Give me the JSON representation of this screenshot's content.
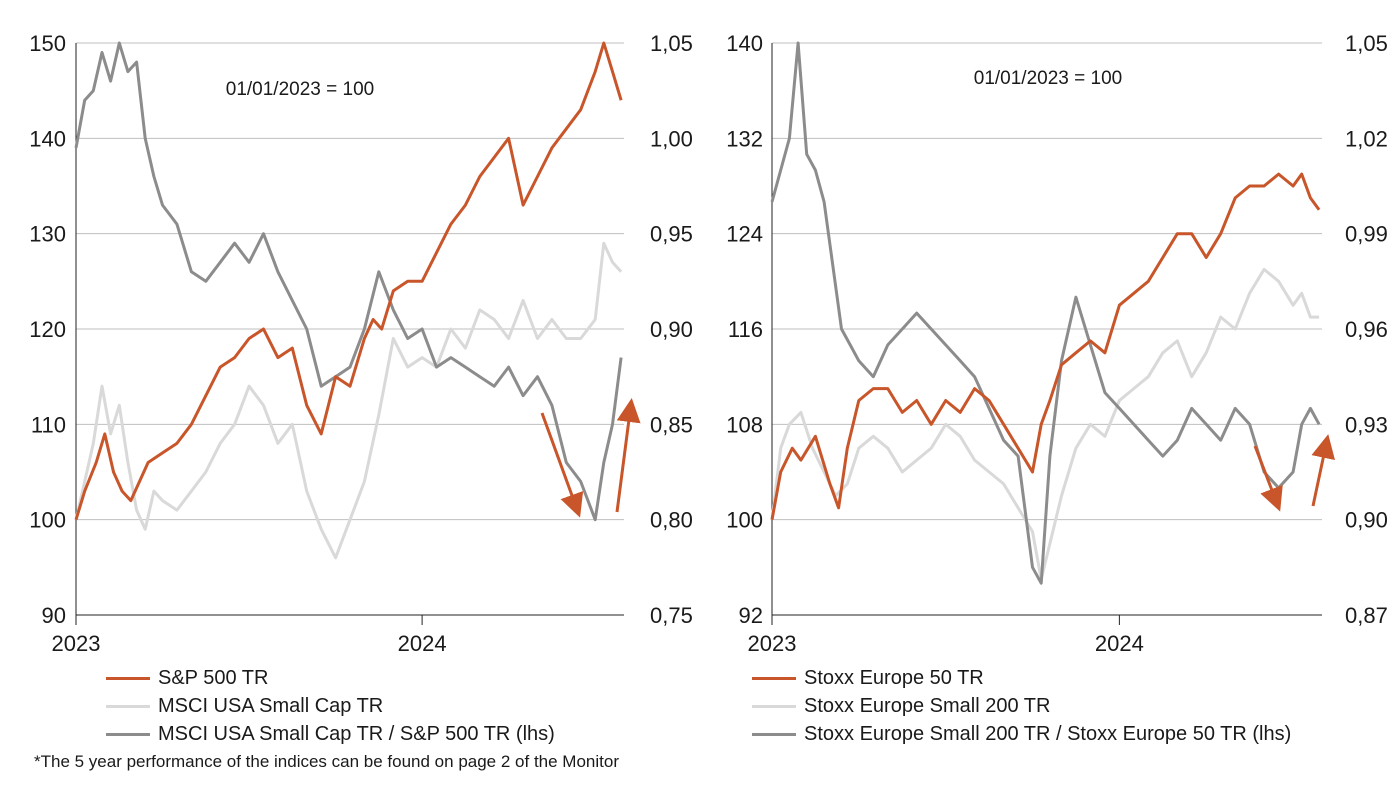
{
  "footnote": "*The 5 year performance of the indices can be found on page 2 of the Monitor",
  "colors": {
    "large": "#c8562a",
    "small": "#d9d9d9",
    "ratio": "#8c8c8c",
    "grid": "#bfbfbf",
    "axis": "#222222",
    "arrow": "#c8562a"
  },
  "chart_data": [
    {
      "type": "line",
      "annotation": "01/01/2023 = 100",
      "x_ticks": [
        "2023",
        "2024"
      ],
      "y_left": {
        "min": 90,
        "max": 150,
        "ticks": [
          "90",
          "100",
          "110",
          "120",
          "130",
          "140",
          "150"
        ]
      },
      "y_right": {
        "min": 0.75,
        "max": 1.05,
        "ticks": [
          "0,75",
          "0,80",
          "0,85",
          "0,90",
          "0,95",
          "1,00",
          "1,05"
        ]
      },
      "x_range": [
        0,
        19
      ],
      "x_ticks_at": [
        0,
        12
      ],
      "series": [
        {
          "name": "S&P 500 TR",
          "axis": "left",
          "color_key": "large",
          "x": [
            0,
            0.3,
            0.7,
            1.0,
            1.3,
            1.6,
            1.9,
            2.2,
            2.5,
            3.0,
            3.5,
            4.0,
            4.5,
            5.0,
            5.5,
            6.0,
            6.5,
            7.0,
            7.5,
            8.0,
            8.5,
            9.0,
            9.5,
            10.0,
            10.3,
            10.6,
            11.0,
            11.5,
            12.0,
            12.5,
            13.0,
            13.5,
            14.0,
            14.5,
            15.0,
            15.5,
            16.0,
            16.5,
            17.0,
            17.5,
            18.0,
            18.3,
            18.6,
            18.9
          ],
          "y": [
            100,
            103,
            106,
            109,
            105,
            103,
            102,
            104,
            106,
            107,
            108,
            110,
            113,
            116,
            117,
            119,
            120,
            117,
            118,
            112,
            109,
            115,
            114,
            119,
            121,
            120,
            124,
            125,
            125,
            128,
            131,
            133,
            136,
            138,
            140,
            133,
            136,
            139,
            141,
            143,
            147,
            150,
            147,
            144
          ]
        },
        {
          "name": "MSCI USA Small Cap TR",
          "axis": "left",
          "color_key": "small",
          "x": [
            0,
            0.3,
            0.6,
            0.9,
            1.2,
            1.5,
            1.8,
            2.1,
            2.4,
            2.7,
            3.0,
            3.5,
            4.0,
            4.5,
            5.0,
            5.5,
            6.0,
            6.5,
            7.0,
            7.5,
            8.0,
            8.5,
            9.0,
            9.5,
            10.0,
            10.5,
            11.0,
            11.5,
            12.0,
            12.5,
            13.0,
            13.5,
            14.0,
            14.5,
            15.0,
            15.5,
            16.0,
            16.5,
            17.0,
            17.5,
            18.0,
            18.3,
            18.6,
            18.9
          ],
          "y": [
            100,
            104,
            108,
            114,
            109,
            112,
            106,
            101,
            99,
            103,
            102,
            101,
            103,
            105,
            108,
            110,
            114,
            112,
            108,
            110,
            103,
            99,
            96,
            100,
            104,
            111,
            119,
            116,
            117,
            116,
            120,
            118,
            122,
            121,
            119,
            123,
            119,
            121,
            119,
            119,
            121,
            129,
            127,
            126
          ]
        },
        {
          "name": "MSCI USA Small Cap TR / S&P 500 TR (lhs)",
          "axis": "right",
          "color_key": "ratio",
          "x": [
            0,
            0.3,
            0.6,
            0.9,
            1.2,
            1.5,
            1.8,
            2.1,
            2.4,
            2.7,
            3.0,
            3.5,
            4.0,
            4.5,
            5.0,
            5.5,
            6.0,
            6.5,
            7.0,
            7.5,
            8.0,
            8.5,
            9.0,
            9.5,
            10.0,
            10.5,
            11.0,
            11.5,
            12.0,
            12.5,
            13.0,
            13.5,
            14.0,
            14.5,
            15.0,
            15.5,
            16.0,
            16.5,
            17.0,
            17.5,
            18.0,
            18.3,
            18.6,
            18.9
          ],
          "y": [
            0.995,
            1.02,
            1.025,
            1.045,
            1.03,
            1.05,
            1.035,
            1.04,
            1.0,
            0.98,
            0.965,
            0.955,
            0.93,
            0.925,
            0.935,
            0.945,
            0.935,
            0.95,
            0.93,
            0.915,
            0.9,
            0.87,
            0.875,
            0.88,
            0.9,
            0.93,
            0.91,
            0.895,
            0.9,
            0.88,
            0.885,
            0.88,
            0.875,
            0.87,
            0.88,
            0.865,
            0.875,
            0.86,
            0.83,
            0.82,
            0.8,
            0.83,
            0.85,
            0.885
          ]
        },
        {
          "name": "",
          "axis": "right",
          "color_key": "ratio",
          "hide_in_legend": true,
          "x": [],
          "y": []
        }
      ]
    },
    {
      "type": "line",
      "annotation": "01/01/2023 = 100",
      "x_ticks": [
        "2023",
        "2024"
      ],
      "y_left": {
        "min": 92,
        "max": 140,
        "ticks": [
          "92",
          "100",
          "108",
          "116",
          "124",
          "132",
          "140"
        ]
      },
      "y_right": {
        "min": 0.87,
        "max": 1.05,
        "ticks": [
          "0,87",
          "0,90",
          "0,93",
          "0,96",
          "0,99",
          "1,02",
          "1,05"
        ]
      },
      "x_range": [
        0,
        19
      ],
      "x_ticks_at": [
        0,
        12
      ],
      "series": [
        {
          "name": "Stoxx Europe 50 TR",
          "axis": "left",
          "color_key": "large",
          "x": [
            0,
            0.3,
            0.7,
            1.0,
            1.5,
            2.0,
            2.3,
            2.6,
            3.0,
            3.5,
            4.0,
            4.5,
            5.0,
            5.5,
            6.0,
            6.5,
            7.0,
            7.5,
            8.0,
            8.5,
            9.0,
            9.3,
            9.6,
            10.0,
            10.5,
            11.0,
            11.5,
            12.0,
            12.5,
            13.0,
            13.5,
            14.0,
            14.5,
            15.0,
            15.5,
            16.0,
            16.5,
            17.0,
            17.5,
            18.0,
            18.3,
            18.6,
            18.9
          ],
          "y": [
            100,
            104,
            106,
            105,
            107,
            103,
            101,
            106,
            110,
            111,
            111,
            109,
            110,
            108,
            110,
            109,
            111,
            110,
            108,
            106,
            104,
            108,
            110,
            113,
            114,
            115,
            114,
            118,
            119,
            120,
            122,
            124,
            124,
            122,
            124,
            127,
            128,
            128,
            129,
            128,
            129,
            127,
            126
          ]
        },
        {
          "name": "Stoxx Europe Small 200 TR",
          "axis": "left",
          "color_key": "small",
          "x": [
            0,
            0.3,
            0.6,
            1.0,
            1.4,
            1.8,
            2.2,
            2.6,
            3.0,
            3.5,
            4.0,
            4.5,
            5.0,
            5.5,
            6.0,
            6.5,
            7.0,
            7.5,
            8.0,
            8.5,
            9.0,
            9.3,
            9.6,
            10.0,
            10.5,
            11.0,
            11.5,
            12.0,
            12.5,
            13.0,
            13.5,
            14.0,
            14.5,
            15.0,
            15.5,
            16.0,
            16.5,
            17.0,
            17.5,
            18.0,
            18.3,
            18.6,
            18.9
          ],
          "y": [
            100,
            106,
            108,
            109,
            106,
            104,
            102,
            103,
            106,
            107,
            106,
            104,
            105,
            106,
            108,
            107,
            105,
            104,
            103,
            101,
            99,
            95,
            98,
            102,
            106,
            108,
            107,
            110,
            111,
            112,
            114,
            115,
            112,
            114,
            117,
            116,
            119,
            121,
            120,
            118,
            119,
            117,
            117
          ]
        },
        {
          "name": "Stoxx Europe Small 200 TR / Stoxx Europe 50 TR (lhs)",
          "axis": "right",
          "color_key": "ratio",
          "x": [
            0,
            0.3,
            0.6,
            0.9,
            1.2,
            1.5,
            1.8,
            2.1,
            2.4,
            2.7,
            3.0,
            3.5,
            4.0,
            4.5,
            5.0,
            5.5,
            6.0,
            6.5,
            7.0,
            7.5,
            8.0,
            8.5,
            9.0,
            9.3,
            9.6,
            10.0,
            10.5,
            11.0,
            11.5,
            12.0,
            12.5,
            13.0,
            13.5,
            14.0,
            14.5,
            15.0,
            15.5,
            16.0,
            16.5,
            17.0,
            17.5,
            18.0,
            18.3,
            18.6,
            18.9
          ],
          "y": [
            1.0,
            1.01,
            1.02,
            1.05,
            1.015,
            1.01,
            1.0,
            0.98,
            0.96,
            0.955,
            0.95,
            0.945,
            0.955,
            0.96,
            0.965,
            0.96,
            0.955,
            0.95,
            0.945,
            0.935,
            0.925,
            0.92,
            0.885,
            0.88,
            0.92,
            0.95,
            0.97,
            0.955,
            0.94,
            0.935,
            0.93,
            0.925,
            0.92,
            0.925,
            0.935,
            0.93,
            0.925,
            0.935,
            0.93,
            0.915,
            0.91,
            0.915,
            0.93,
            0.935,
            0.93
          ]
        },
        {
          "name": "",
          "axis": "right",
          "color_key": "ratio",
          "hide_in_legend": true,
          "x": [],
          "y": []
        }
      ]
    }
  ]
}
